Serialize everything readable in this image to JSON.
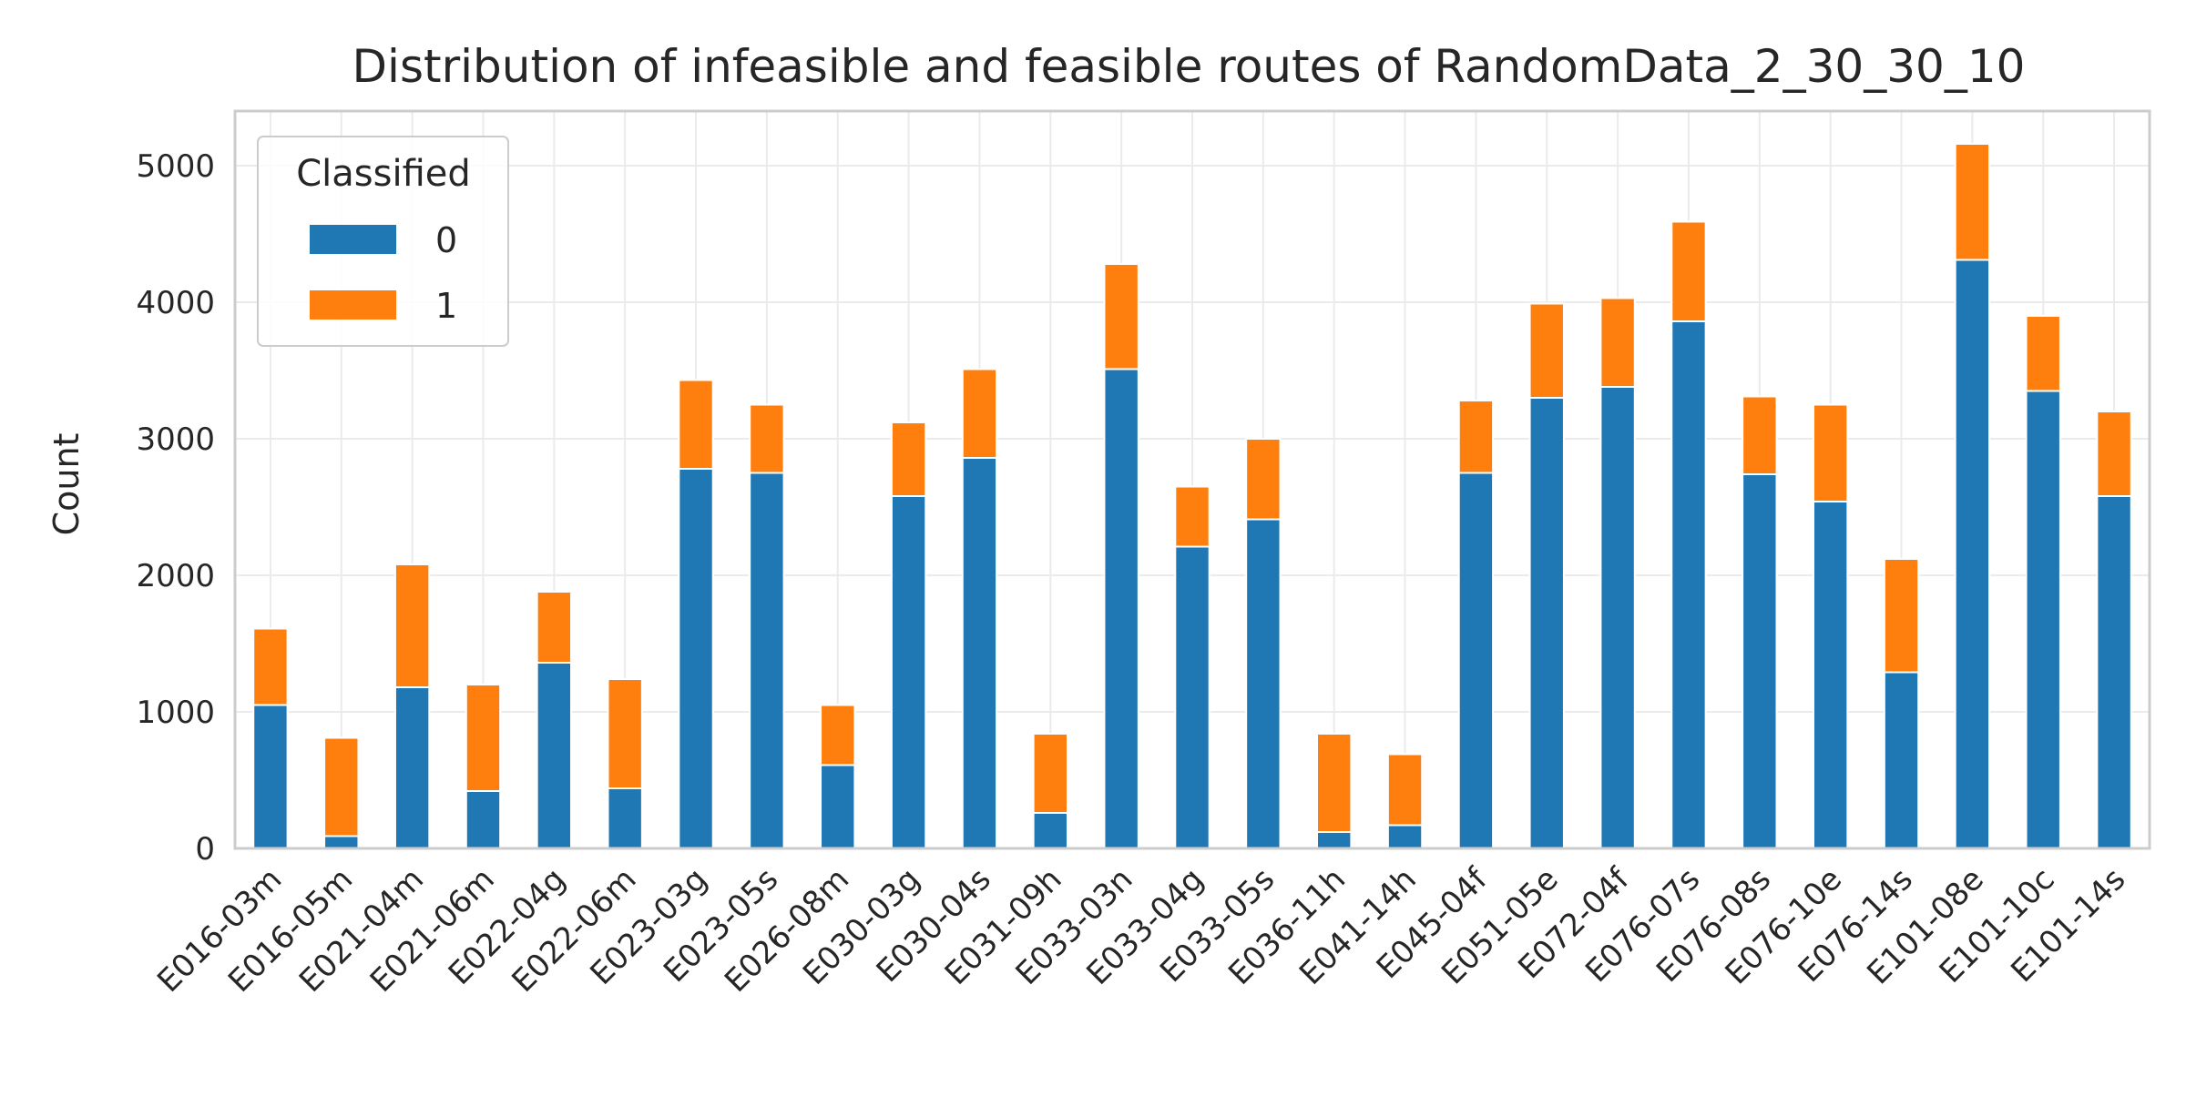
{
  "chart_data": {
    "type": "bar",
    "stacked": true,
    "title": "Distribution of infeasible and feasible routes of RandomData_2_30_30_10",
    "xlabel": "",
    "ylabel": "Count",
    "ylim": [
      0,
      5400
    ],
    "yticks": [
      0,
      1000,
      2000,
      3000,
      4000,
      5000
    ],
    "grid": true,
    "legend": {
      "title": "Classified",
      "position": "top-left"
    },
    "categories": [
      "E016-03m",
      "E016-05m",
      "E021-04m",
      "E021-06m",
      "E022-04g",
      "E022-06m",
      "E023-03g",
      "E023-05s",
      "E026-08m",
      "E030-03g",
      "E030-04s",
      "E031-09h",
      "E033-03n",
      "E033-04g",
      "E033-05s",
      "E036-11h",
      "E041-14h",
      "E045-04f",
      "E051-05e",
      "E072-04f",
      "E076-07s",
      "E076-08s",
      "E076-10e",
      "E076-14s",
      "E101-08e",
      "E101-10c",
      "E101-14s"
    ],
    "series": [
      {
        "name": "0",
        "color": "#1f77b4",
        "values": [
          1050,
          90,
          1180,
          420,
          1360,
          440,
          2780,
          2750,
          610,
          2580,
          2860,
          260,
          3510,
          2210,
          2410,
          120,
          170,
          2750,
          3300,
          3380,
          3860,
          2740,
          2540,
          1290,
          4310,
          3350,
          2580
        ]
      },
      {
        "name": "1",
        "color": "#ff7f0e",
        "values": [
          560,
          720,
          900,
          780,
          520,
          800,
          650,
          500,
          440,
          540,
          650,
          580,
          770,
          440,
          590,
          720,
          520,
          530,
          690,
          650,
          730,
          570,
          710,
          830,
          850,
          550,
          620
        ]
      }
    ]
  }
}
